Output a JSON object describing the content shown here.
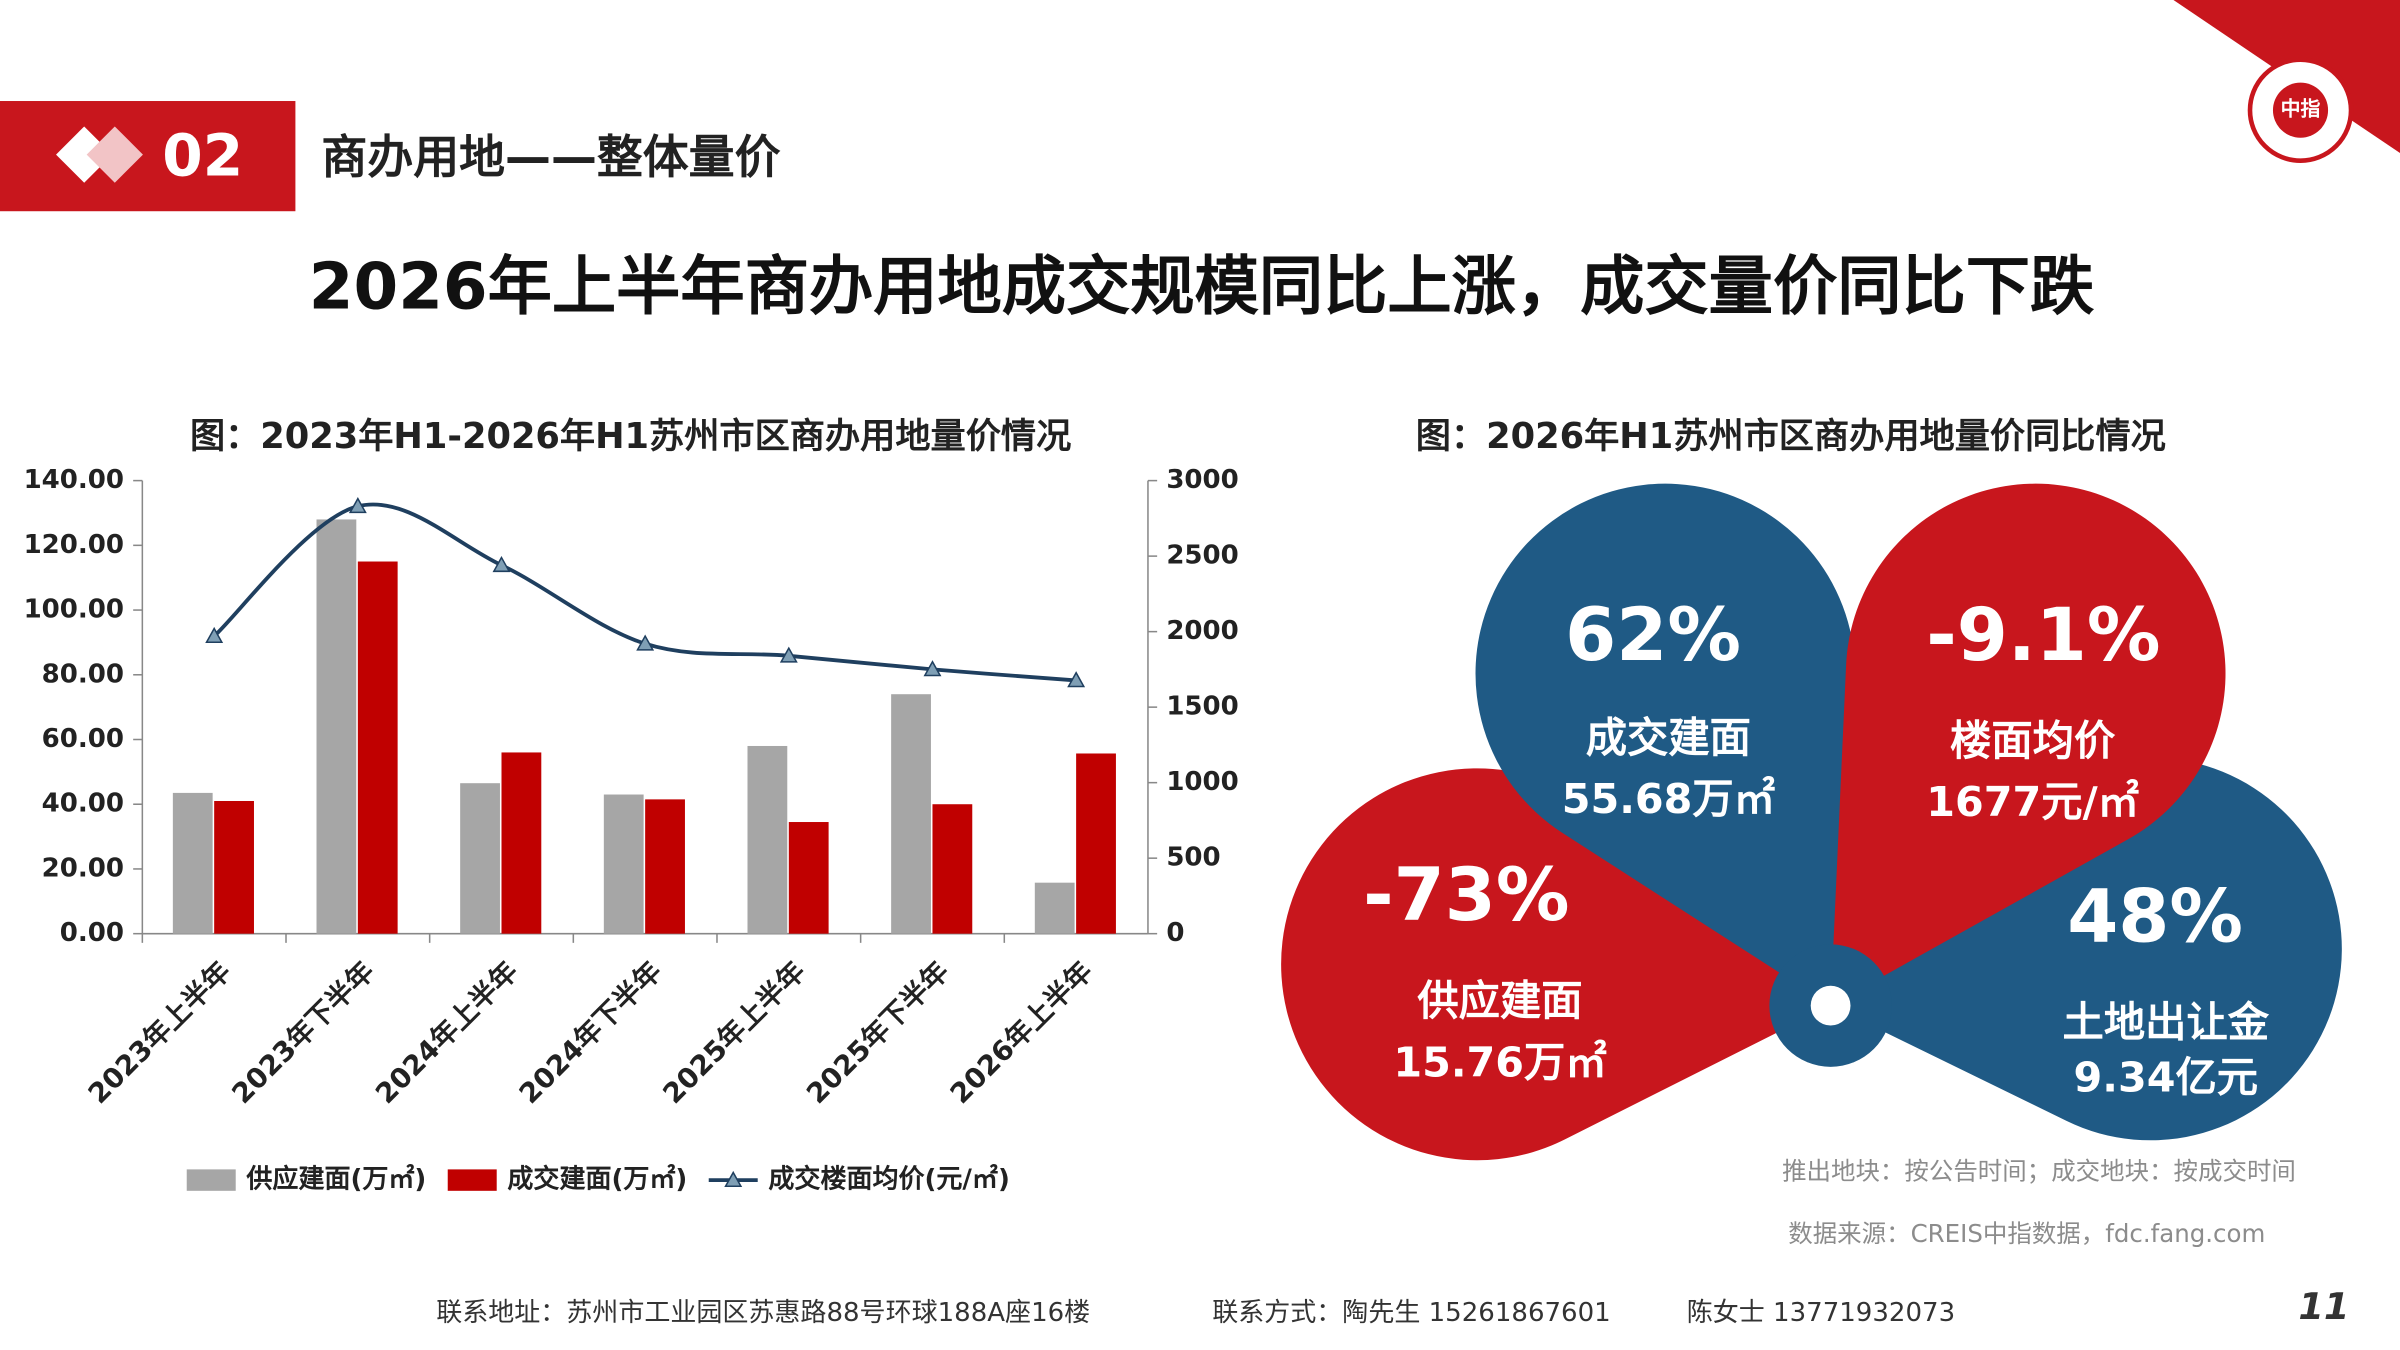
{
  "header": {
    "section_number": "02",
    "section_title": "商办用地——整体量价",
    "logo_text": "中指"
  },
  "headline": "2026年上半年商办用地成交规模同比上涨，成交量价同比下跌",
  "chart_data": {
    "type": "bar",
    "title": "图：2023年H1-2026年H1苏州市区商办用地量价情况",
    "categories": [
      "2023年上半年",
      "2023年下半年",
      "2024年上半年",
      "2024年下半年",
      "2025年上半年",
      "2025年下半年",
      "2026年上半年"
    ],
    "series": [
      {
        "name": "供应建面(万㎡)",
        "type": "bar",
        "color": "#a6a6a6",
        "values": [
          43.5,
          128,
          46.5,
          43,
          58,
          74,
          15.76
        ]
      },
      {
        "name": "成交建面(万㎡)",
        "type": "bar",
        "color": "#c00000",
        "values": [
          41,
          115,
          56,
          41.5,
          34.5,
          40,
          55.68
        ]
      },
      {
        "name": "成交楼面均价(元/㎡)",
        "type": "line",
        "axis": "y2",
        "color": "#1f3f5f",
        "marker_color": "#7f9fb5",
        "values": [
          1970,
          2830,
          2440,
          1920,
          1840,
          1750,
          1677
        ]
      }
    ],
    "ylim": [
      0,
      140
    ],
    "yticks": [
      {
        "value": 0,
        "label": "0.00"
      },
      {
        "value": 20,
        "label": "20.00"
      },
      {
        "value": 40,
        "label": "40.00"
      },
      {
        "value": 60,
        "label": "60.00"
      },
      {
        "value": 80,
        "label": "80.00"
      },
      {
        "value": 100,
        "label": "100.00"
      },
      {
        "value": 120,
        "label": "120.00"
      },
      {
        "value": 140,
        "label": "140.00"
      }
    ],
    "y2lim": [
      0,
      3000
    ],
    "y2ticks": [
      0,
      500,
      1000,
      1500,
      2000,
      2500,
      3000
    ],
    "grid": false,
    "legend": "bottom"
  },
  "summary": {
    "title": "图：2026年H1苏州市区商办用地量价同比情况",
    "petals": [
      {
        "change": "62%",
        "label": "成交建面",
        "amount": "55.68万㎡"
      },
      {
        "change": "-9.1%",
        "label": "楼面均价",
        "amount": "1677元/㎡"
      },
      {
        "change": "-73%",
        "label": "供应建面",
        "amount": "15.76万㎡"
      },
      {
        "change": "48%",
        "label": "土地出让金",
        "amount": "9.34亿元"
      }
    ]
  },
  "notes": [
    "推出地块：按公告时间；成交地块：按成交时间",
    "数据来源：CREIS中指数据，fdc.fang.com"
  ],
  "footer": {
    "address": "联系地址：苏州市工业园区苏惠路88号环球188A座16楼",
    "contact1": "联系方式：陶先生 15261867601",
    "contact2": "陈女士 13771932073",
    "page": "11"
  }
}
